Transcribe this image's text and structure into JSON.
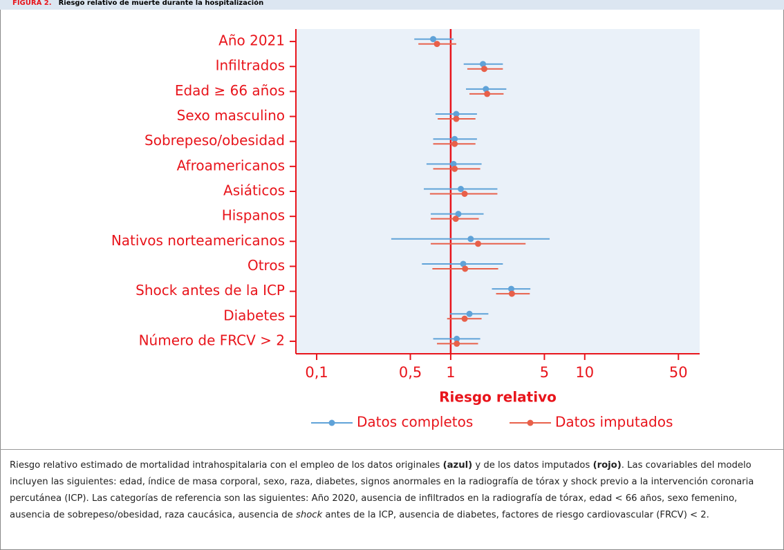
{
  "header": {
    "label": "FIGURA 2.",
    "title": "Riesgo relativo de muerte durante la hospitalización"
  },
  "chart_data": {
    "type": "forest",
    "x_label": "Riesgo relativo",
    "x_log": true,
    "xlim": [
      0.07,
      72
    ],
    "xticks": [
      {
        "value": 0.1,
        "label": "0,1"
      },
      {
        "value": 0.5,
        "label": "0,5"
      },
      1,
      5,
      10,
      50
    ],
    "reference_line": 1,
    "categories": [
      "Año 2021",
      "Infiltrados",
      "Edad ≥ 66 años",
      "Sexo masculino",
      "Sobrepeso/obesidad",
      "Afroamericanos",
      "Asiáticos",
      "Hispanos",
      "Nativos norteamericanos",
      "Otros",
      "Shock antes de la ICP",
      "Diabetes",
      "Número de FRCV > 2"
    ],
    "series": [
      {
        "name": "Datos completos",
        "color": "#5fa2d8",
        "values": [
          0.74,
          1.74,
          1.83,
          1.1,
          1.07,
          1.05,
          1.19,
          1.14,
          1.41,
          1.24,
          2.83,
          1.38,
          1.11
        ],
        "lower": [
          0.535,
          1.25,
          1.3,
          0.77,
          0.74,
          0.66,
          0.63,
          0.71,
          0.36,
          0.61,
          2.03,
          0.99,
          0.74
        ],
        "upper": [
          1.05,
          2.45,
          2.6,
          1.57,
          1.57,
          1.7,
          2.23,
          1.76,
          5.47,
          2.45,
          3.93,
          1.91,
          1.66
        ]
      },
      {
        "name": "Datos imputados",
        "color": "#e8604a",
        "values": [
          0.79,
          1.78,
          1.87,
          1.1,
          1.07,
          1.07,
          1.27,
          1.09,
          1.6,
          1.28,
          2.86,
          1.27,
          1.11
        ],
        "lower": [
          0.574,
          1.33,
          1.38,
          0.8,
          0.74,
          0.74,
          0.7,
          0.71,
          0.71,
          0.73,
          2.18,
          0.94,
          0.79
        ],
        "upper": [
          1.1,
          2.45,
          2.48,
          1.53,
          1.53,
          1.66,
          2.23,
          1.62,
          3.62,
          2.26,
          3.89,
          1.7,
          1.6
        ]
      }
    ]
  },
  "caption": {
    "parts": [
      "Riesgo relativo estimado de mortalidad intrahospitalaria con el empleo de los datos originales ",
      "(azul)",
      " y de los datos imputados ",
      "(rojo)",
      ". Las covariables del modelo incluyen las siguientes: edad, índice de masa corporal, sexo, raza, diabetes, signos anormales en la radiografía de tórax y shock previo a la intervención coronaria percutánea (ICP). Las categorías de referencia son las siguientes: Año 2020, ausencia de infiltrados en la radiografía de tórax, edad < 66 años, sexo femenino, ausencia de sobrepeso/obesidad, raza caucásica, ausencia de ",
      "shock",
      " antes de la ICP, ausencia de diabetes, factores de riesgo cardiovascular (FRCV) < 2."
    ]
  }
}
